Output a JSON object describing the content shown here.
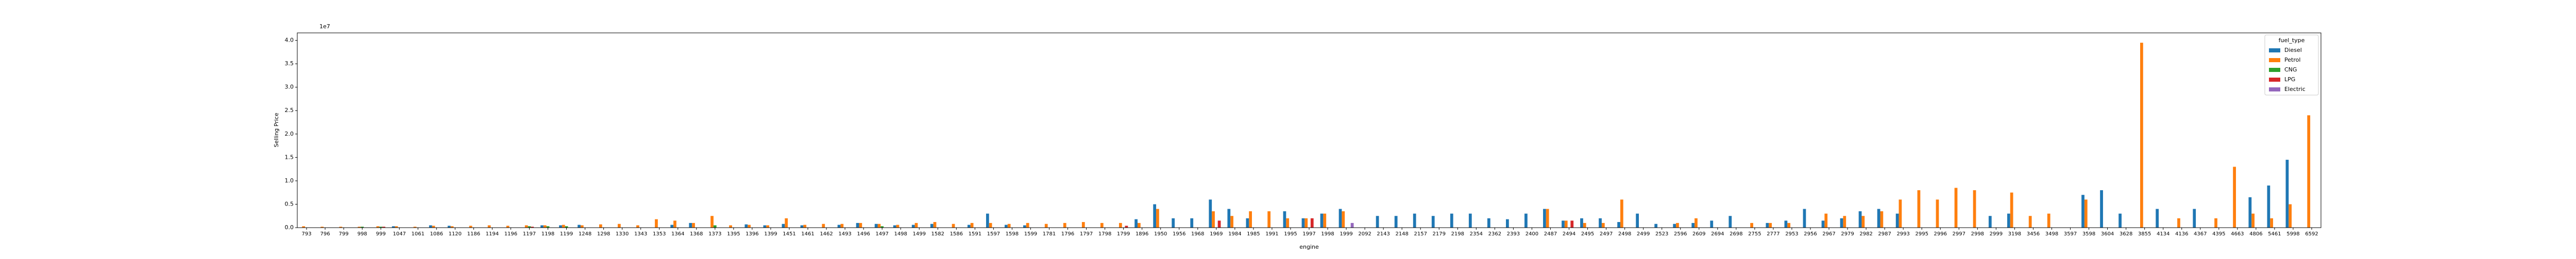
{
  "chart_data": {
    "type": "bar",
    "x_label": "engine",
    "y_label": "Selling Price",
    "y_offset_label": "1e7",
    "legend_title": "fuel_type",
    "legend_position": "upper right",
    "categories": [
      "793",
      "796",
      "799",
      "998",
      "999",
      "1047",
      "1061",
      "1086",
      "1120",
      "1186",
      "1194",
      "1196",
      "1197",
      "1198",
      "1199",
      "1248",
      "1298",
      "1330",
      "1343",
      "1353",
      "1364",
      "1368",
      "1373",
      "1395",
      "1396",
      "1399",
      "1451",
      "1461",
      "1462",
      "1493",
      "1496",
      "1497",
      "1498",
      "1499",
      "1582",
      "1586",
      "1591",
      "1597",
      "1598",
      "1599",
      "1781",
      "1796",
      "1797",
      "1798",
      "1799",
      "1896",
      "1950",
      "1956",
      "1968",
      "1969",
      "1984",
      "1985",
      "1991",
      "1995",
      "1997",
      "1998",
      "1999",
      "2092",
      "2143",
      "2148",
      "2157",
      "2179",
      "2198",
      "2354",
      "2362",
      "2393",
      "2400",
      "2487",
      "2494",
      "2495",
      "2497",
      "2498",
      "2499",
      "2523",
      "2596",
      "2609",
      "2694",
      "2698",
      "2755",
      "2777",
      "2953",
      "2956",
      "2967",
      "2979",
      "2982",
      "2987",
      "2993",
      "2995",
      "2996",
      "2997",
      "2998",
      "2999",
      "3198",
      "3456",
      "3498",
      "3597",
      "3598",
      "3604",
      "3628",
      "3855",
      "4134",
      "4136",
      "4367",
      "4395",
      "4663",
      "4806",
      "5461",
      "5998",
      "6592"
    ],
    "series": [
      {
        "name": "Diesel",
        "color": "#1f77b4",
        "values": [
          null,
          null,
          null,
          null,
          null,
          0.03,
          null,
          0.05,
          0.04,
          null,
          null,
          null,
          null,
          0.05,
          0.05,
          0.06,
          null,
          null,
          null,
          null,
          0.06,
          0.1,
          null,
          null,
          0.07,
          0.05,
          0.08,
          0.05,
          null,
          0.06,
          0.1,
          0.08,
          0.05,
          0.06,
          0.08,
          null,
          0.06,
          0.3,
          0.06,
          0.05,
          null,
          null,
          null,
          null,
          null,
          0.18,
          0.5,
          0.2,
          0.2,
          0.6,
          0.4,
          0.2,
          null,
          0.35,
          0.2,
          0.3,
          0.4,
          null,
          0.25,
          0.25,
          0.3,
          0.25,
          0.3,
          0.3,
          0.2,
          0.18,
          0.3,
          0.4,
          0.15,
          0.2,
          0.2,
          0.12,
          0.3,
          0.08,
          0.08,
          0.1,
          0.15,
          0.25,
          null,
          0.1,
          0.15,
          0.4,
          0.15,
          0.2,
          0.35,
          0.4,
          0.3,
          null,
          null,
          null,
          null,
          0.25,
          0.3,
          null,
          null,
          null,
          0.7,
          0.8,
          0.3,
          null,
          0.4,
          null,
          0.4,
          null,
          null,
          0.65,
          0.9,
          1.45,
          null
        ]
      },
      {
        "name": "Petrol",
        "color": "#ff7f0e",
        "values": [
          0.03,
          0.02,
          0.02,
          0.02,
          0.03,
          0.03,
          0.02,
          0.04,
          0.03,
          0.04,
          0.05,
          0.04,
          0.05,
          0.05,
          0.06,
          0.05,
          0.07,
          0.08,
          0.05,
          0.18,
          0.15,
          0.1,
          0.25,
          0.05,
          0.06,
          0.05,
          0.2,
          0.06,
          0.08,
          0.08,
          0.1,
          0.08,
          0.06,
          0.1,
          0.12,
          0.08,
          0.1,
          0.1,
          0.08,
          0.1,
          0.08,
          0.1,
          0.12,
          0.1,
          0.1,
          0.1,
          0.4,
          null,
          null,
          0.35,
          0.25,
          0.35,
          0.35,
          0.2,
          0.2,
          0.3,
          0.35,
          null,
          null,
          null,
          null,
          null,
          null,
          null,
          null,
          null,
          null,
          0.4,
          0.15,
          0.1,
          0.1,
          0.6,
          null,
          null,
          0.1,
          0.2,
          null,
          null,
          0.1,
          0.1,
          0.1,
          null,
          0.3,
          0.25,
          0.25,
          0.35,
          0.6,
          0.8,
          0.6,
          0.85,
          0.8,
          null,
          0.75,
          0.25,
          0.3,
          null,
          0.6,
          null,
          null,
          3.95,
          null,
          0.2,
          null,
          0.2,
          1.3,
          0.3,
          0.2,
          0.5,
          2.4
        ]
      },
      {
        "name": "CNG",
        "color": "#2ca02c",
        "values": [
          null,
          null,
          null,
          0.02,
          0.02,
          null,
          null,
          null,
          null,
          null,
          null,
          null,
          0.03,
          0.03,
          0.03,
          null,
          null,
          null,
          null,
          null,
          null,
          null,
          0.05,
          null,
          null,
          null,
          null,
          null,
          null,
          null,
          null,
          0.03,
          null,
          null,
          null,
          null,
          null,
          null,
          null,
          null,
          null,
          null,
          null,
          null,
          null,
          null,
          null,
          null,
          null,
          null,
          null,
          null,
          null,
          null,
          null,
          null,
          null,
          null,
          null,
          null,
          null,
          null,
          null,
          null,
          null,
          null,
          null,
          null,
          null,
          null,
          null,
          null,
          null,
          null,
          null,
          null,
          null,
          null,
          null,
          null,
          null,
          null,
          null,
          null,
          null,
          null,
          null,
          null,
          null,
          null,
          null,
          null,
          null,
          null,
          null,
          null,
          null,
          null,
          null,
          null,
          null,
          null,
          null,
          null,
          null,
          null,
          null,
          null,
          null
        ]
      },
      {
        "name": "LPG",
        "color": "#d62728",
        "values": [
          null,
          null,
          null,
          null,
          0.02,
          null,
          null,
          null,
          null,
          null,
          null,
          null,
          0.02,
          null,
          null,
          null,
          null,
          null,
          null,
          null,
          null,
          null,
          null,
          null,
          null,
          null,
          null,
          null,
          null,
          null,
          null,
          null,
          null,
          null,
          null,
          null,
          null,
          null,
          null,
          null,
          null,
          null,
          null,
          null,
          0.04,
          null,
          null,
          null,
          null,
          0.15,
          null,
          null,
          null,
          null,
          0.2,
          null,
          null,
          null,
          null,
          null,
          null,
          null,
          null,
          null,
          null,
          null,
          null,
          null,
          0.15,
          null,
          null,
          null,
          null,
          null,
          null,
          null,
          null,
          null,
          null,
          null,
          null,
          null,
          null,
          null,
          null,
          null,
          null,
          null,
          null,
          null,
          null,
          null,
          null,
          null,
          null,
          null,
          null,
          null,
          null,
          null,
          null,
          null,
          null,
          null,
          null,
          null,
          null,
          null,
          null
        ]
      },
      {
        "name": "Electric",
        "color": "#9467bd",
        "values": [
          null,
          null,
          null,
          null,
          null,
          null,
          null,
          null,
          null,
          null,
          null,
          null,
          null,
          null,
          null,
          null,
          null,
          null,
          null,
          null,
          null,
          null,
          null,
          null,
          null,
          null,
          null,
          null,
          null,
          null,
          null,
          null,
          null,
          null,
          null,
          null,
          null,
          null,
          null,
          null,
          null,
          null,
          null,
          null,
          null,
          null,
          null,
          null,
          null,
          null,
          null,
          null,
          null,
          null,
          null,
          null,
          0.1,
          null,
          null,
          null,
          null,
          null,
          null,
          null,
          null,
          null,
          null,
          null,
          null,
          null,
          null,
          null,
          null,
          null,
          null,
          null,
          null,
          null,
          null,
          null,
          null,
          null,
          null,
          null,
          null,
          null,
          null,
          null,
          null,
          null,
          null,
          null,
          null,
          null,
          null,
          null,
          null,
          null,
          null,
          null,
          null,
          null,
          null,
          null,
          null,
          null,
          null,
          null,
          null
        ]
      }
    ],
    "ylim": [
      0,
      4.16
    ],
    "yticks": [
      {
        "value": 0,
        "label": "0.0"
      },
      0.5,
      {
        "value": 1,
        "label": "1.0"
      },
      1.5,
      {
        "value": 2,
        "label": "2.0"
      },
      2.5,
      {
        "value": 3,
        "label": "3.0"
      },
      3.5,
      {
        "value": 4,
        "label": "4.0"
      }
    ]
  }
}
